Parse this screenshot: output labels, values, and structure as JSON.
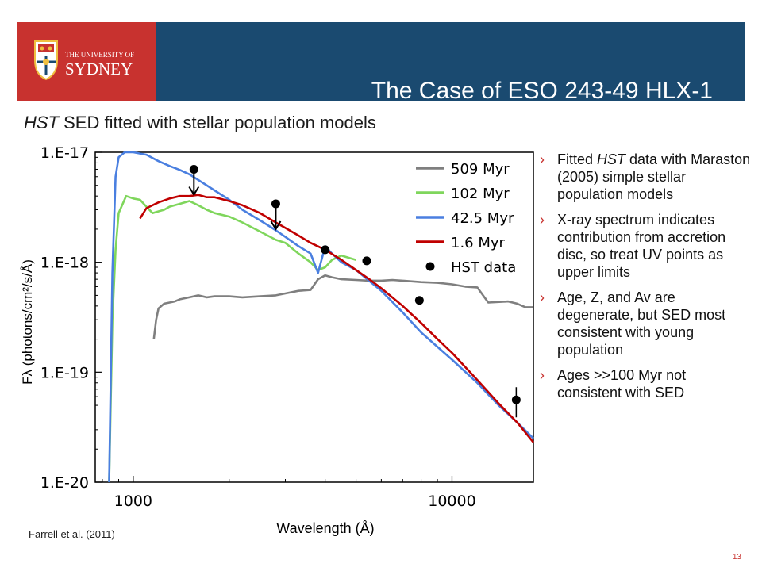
{
  "header": {
    "title": "The Case of ESO 243-49 HLX-1",
    "logo": {
      "line1": "THE UNIVERSITY OF",
      "line2": "SYDNEY",
      "icon": "university-crest-icon"
    },
    "banner_color": "#1a4a70",
    "logo_color": "#c8322f"
  },
  "subtitle": {
    "italic": "HST",
    "text": " SED fitted with stellar population models"
  },
  "bullets": [
    {
      "before": "Fitted ",
      "italic": "HST",
      "after": " data with Maraston (2005) simple stellar population models"
    },
    {
      "before": "X-ray spectrum indicates contribution from accretion disc, so treat UV points as upper limits",
      "italic": "",
      "after": ""
    },
    {
      "before": "Age, Z, and Av are degenerate, but SED most consistent with young population",
      "italic": "",
      "after": ""
    },
    {
      "before": "Ages >>100 Myr not consistent with SED",
      "italic": "",
      "after": ""
    }
  ],
  "credit": "Farrell et al. (2011)",
  "page_number": "13",
  "chart_data": {
    "type": "line",
    "xlabel": "Wavelength (Å)",
    "ylabel": "Fλ (photons/cm²/s/Å)",
    "xscale": "log",
    "yscale": "log",
    "xlim": [
      760,
      18000
    ],
    "ylim": [
      1e-20,
      1e-17
    ],
    "xticks": [
      {
        "value": 1000,
        "label": "1000"
      },
      {
        "value": 10000,
        "label": "10000"
      }
    ],
    "yticks": [
      {
        "value": 1e-17,
        "label": "1.E-17"
      },
      {
        "value": 1e-18,
        "label": "1.E-18"
      },
      {
        "value": 1e-19,
        "label": "1.E-19"
      },
      {
        "value": 1e-20,
        "label": "1.E-20"
      }
    ],
    "legend_position": "top-right",
    "series": [
      {
        "name": "509 Myr",
        "color": "#7f7f7f",
        "x": [
          1160,
          1180,
          1200,
          1250,
          1300,
          1350,
          1400,
          1500,
          1600,
          1700,
          1800,
          2000,
          2200,
          2500,
          2800,
          3000,
          3300,
          3600,
          3800,
          4000,
          4200,
          4500,
          5000,
          5500,
          6000,
          6500,
          7000,
          8000,
          9000,
          10000,
          11000,
          12000,
          13000,
          15000,
          16000,
          17000,
          18000
        ],
        "y": [
          2e-19,
          3e-19,
          3.8e-19,
          4.2e-19,
          4.3e-19,
          4.4e-19,
          4.6e-19,
          4.8e-19,
          5e-19,
          4.8e-19,
          4.9e-19,
          4.9e-19,
          4.8e-19,
          4.9e-19,
          5e-19,
          5.2e-19,
          5.5e-19,
          5.6e-19,
          7e-19,
          7.6e-19,
          7.3e-19,
          7e-19,
          6.9e-19,
          6.8e-19,
          6.8e-19,
          6.9e-19,
          6.8e-19,
          6.6e-19,
          6.5e-19,
          6.3e-19,
          6e-19,
          5.9e-19,
          4.3e-19,
          4.4e-19,
          4.2e-19,
          3.9e-19,
          3.9e-19
        ]
      },
      {
        "name": "102 Myr",
        "color": "#7fd65c",
        "x": [
          840,
          860,
          880,
          900,
          950,
          1000,
          1050,
          1100,
          1150,
          1200,
          1250,
          1300,
          1350,
          1400,
          1450,
          1500,
          1600,
          1700,
          1800,
          2000,
          2200,
          2500,
          2800,
          3000,
          3300,
          3600,
          3800,
          4000,
          4200,
          4500,
          5000
        ],
        "y": [
          1e-20,
          3e-19,
          1.3e-18,
          2.8e-18,
          4e-18,
          3.8e-18,
          3.7e-18,
          3.2e-18,
          2.8e-18,
          2.9e-18,
          3e-18,
          3.2e-18,
          3.3e-18,
          3.4e-18,
          3.5e-18,
          3.6e-18,
          3.3e-18,
          3e-18,
          2.8e-18,
          2.6e-18,
          2.3e-18,
          1.9e-18,
          1.6e-18,
          1.5e-18,
          1.2e-18,
          1e-18,
          8.5e-19,
          9e-19,
          1.05e-18,
          1.15e-18,
          1.05e-18
        ]
      },
      {
        "name": "42.5 Myr",
        "color": "#4a7fe0",
        "x": [
          840,
          860,
          880,
          900,
          940,
          1000,
          1100,
          1200,
          1300,
          1400,
          1500,
          1600,
          1800,
          2000,
          2200,
          2500,
          2800,
          3000,
          3300,
          3600,
          3800,
          4000,
          4200,
          4500,
          5000,
          6000,
          7000,
          8000,
          9000,
          10000,
          12000,
          14000,
          16000,
          18000
        ],
        "y": [
          1e-20,
          8e-19,
          6e-18,
          9e-18,
          1e-17,
          1e-17,
          9.5e-18,
          8.3e-18,
          7.5e-18,
          6.9e-18,
          6.3e-18,
          5.6e-18,
          4.5e-18,
          3.7e-18,
          3e-18,
          2.4e-18,
          1.95e-18,
          1.7e-18,
          1.4e-18,
          1.2e-18,
          8e-19,
          1.4e-18,
          1.2e-18,
          1e-18,
          8.5e-19,
          5.5e-19,
          3.5e-19,
          2.3e-19,
          1.7e-19,
          1.3e-19,
          8e-20,
          5e-20,
          3.5e-20,
          2.5e-20
        ]
      },
      {
        "name": "1.6 Myr",
        "color": "#c00000",
        "x": [
          1050,
          1100,
          1200,
          1300,
          1400,
          1500,
          1600,
          1700,
          1800,
          2000,
          2200,
          2500,
          2800,
          3000,
          3300,
          3600,
          4000,
          4500,
          5000,
          5500,
          6000,
          7000,
          8000,
          9000,
          10000,
          12000,
          14000,
          16000,
          18000
        ],
        "y": [
          2.5e-18,
          3.1e-18,
          3.5e-18,
          3.8e-18,
          4e-18,
          4e-18,
          4.1e-18,
          3.9e-18,
          3.9e-18,
          3.6e-18,
          3.3e-18,
          2.8e-18,
          2.3e-18,
          2.05e-18,
          1.75e-18,
          1.5e-18,
          1.3e-18,
          1.05e-18,
          8.5e-19,
          7e-19,
          5.8e-19,
          4e-19,
          2.8e-19,
          2e-19,
          1.5e-19,
          8.5e-20,
          5.2e-20,
          3.5e-20,
          2.3e-20
        ]
      },
      {
        "name": "HST data",
        "type": "scatter",
        "color": "#000000",
        "x": [
          1550,
          2800,
          4000,
          5400,
          7900,
          15900
        ],
        "y": [
          7e-18,
          3.4e-18,
          1.3e-18,
          1.03e-18,
          4.5e-19,
          5.6e-20
        ],
        "upper_limit": [
          true,
          true,
          false,
          false,
          false,
          false
        ]
      }
    ]
  }
}
